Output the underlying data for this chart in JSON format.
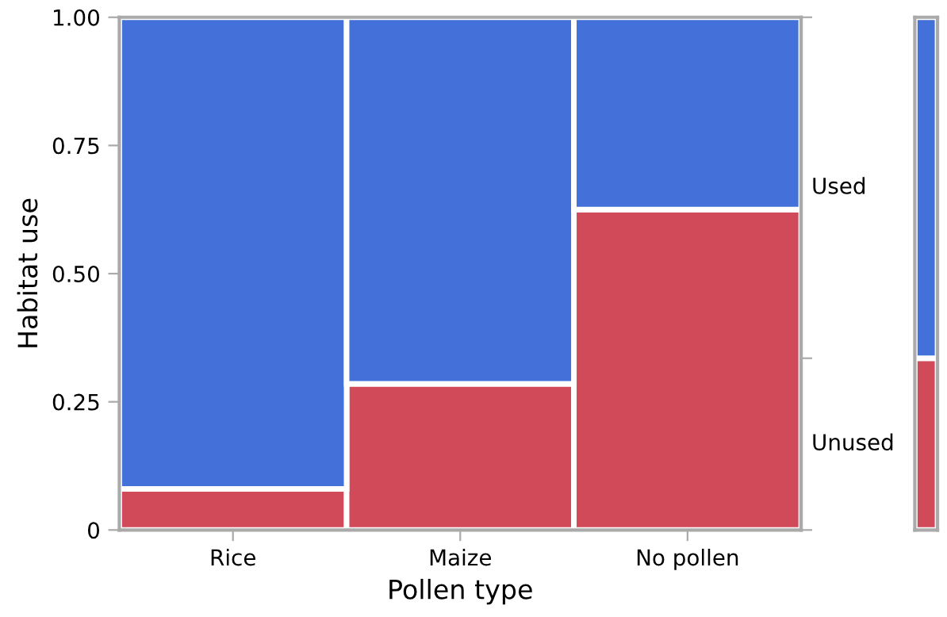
{
  "chart_data": [
    {
      "type": "bar",
      "stacked": true,
      "xlabel": "Pollen type",
      "ylabel": "Habitat use",
      "categories": [
        "Rice",
        "Maize",
        "No pollen"
      ],
      "series": [
        {
          "name": "Unused",
          "color": "#d14a5a",
          "values": [
            0.08,
            0.285,
            0.625
          ]
        },
        {
          "name": "Used",
          "color": "#4371d9",
          "values": [
            0.92,
            0.715,
            0.375
          ]
        }
      ],
      "ylim": [
        0,
        1
      ],
      "yticks": [
        {
          "value": 0,
          "label": "0"
        },
        0.25,
        {
          "value": 0.5,
          "label": "0.50"
        },
        0.75,
        {
          "value": 1,
          "label": "1.00"
        }
      ],
      "grid": false,
      "legend": "right"
    },
    {
      "type": "bar",
      "stacked": true,
      "categories": [
        null
      ],
      "series": [
        {
          "color": "#d14a5a",
          "values": [
            0.335
          ]
        },
        {
          "color": "#4371d9",
          "values": [
            0.665
          ]
        }
      ],
      "ylim": [
        0,
        1
      ],
      "tick_labels": false
    }
  ]
}
